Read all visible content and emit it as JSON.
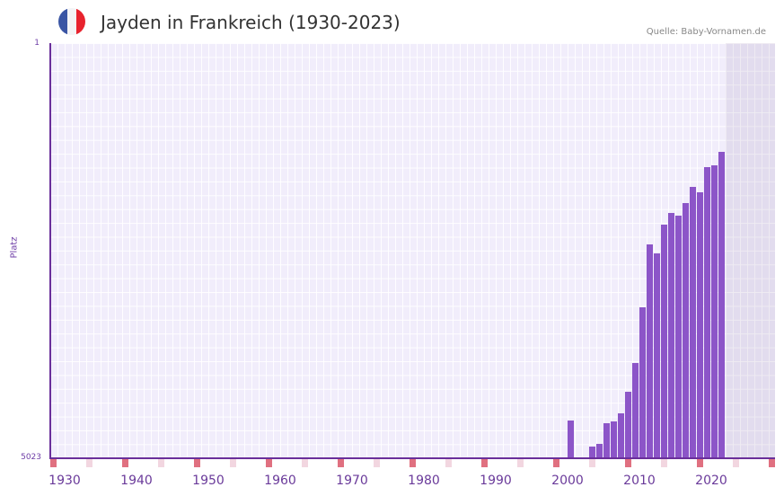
{
  "header": {
    "title": "Jayden in Frankreich (1930-2023)",
    "source": "Quelle: Baby-Vornamen.de",
    "flag_icon": "france-flag-icon",
    "flag_colors": [
      "#3a55a4",
      "#f4f4f6",
      "#e8232e"
    ]
  },
  "colors": {
    "bar": "#8c55c8",
    "axis": "#6a2f9a",
    "tick_major": "#e07080",
    "tick_minor": "#f2d6e0"
  },
  "chart_data": {
    "type": "bar",
    "title": "Jayden in Frankreich (1930-2023)",
    "xlabel": "",
    "ylabel": "Platz",
    "y_inverted": true,
    "ylim": [
      5023,
      1
    ],
    "yticks": [
      "1",
      "5023"
    ],
    "xticks": [
      "1930",
      "1940",
      "1950",
      "1960",
      "1970",
      "1980",
      "1990",
      "2000",
      "2010",
      "2020"
    ],
    "xrange": [
      1928,
      2028
    ],
    "categories": [
      2000,
      2003,
      2004,
      2005,
      2006,
      2007,
      2008,
      2009,
      2010,
      2011,
      2012,
      2013,
      2014,
      2015,
      2016,
      2017,
      2018,
      2019,
      2020,
      2021
    ],
    "values": [
      4567,
      4883,
      4850,
      4600,
      4578,
      4480,
      4219,
      3871,
      3197,
      2436,
      2545,
      2197,
      2056,
      2088,
      1936,
      1740,
      1805,
      1501,
      1479,
      1316
    ],
    "grid": true,
    "legend": null
  },
  "labels": {
    "y_top": "1",
    "y_bottom": "5023",
    "y_axis": "Platz"
  }
}
